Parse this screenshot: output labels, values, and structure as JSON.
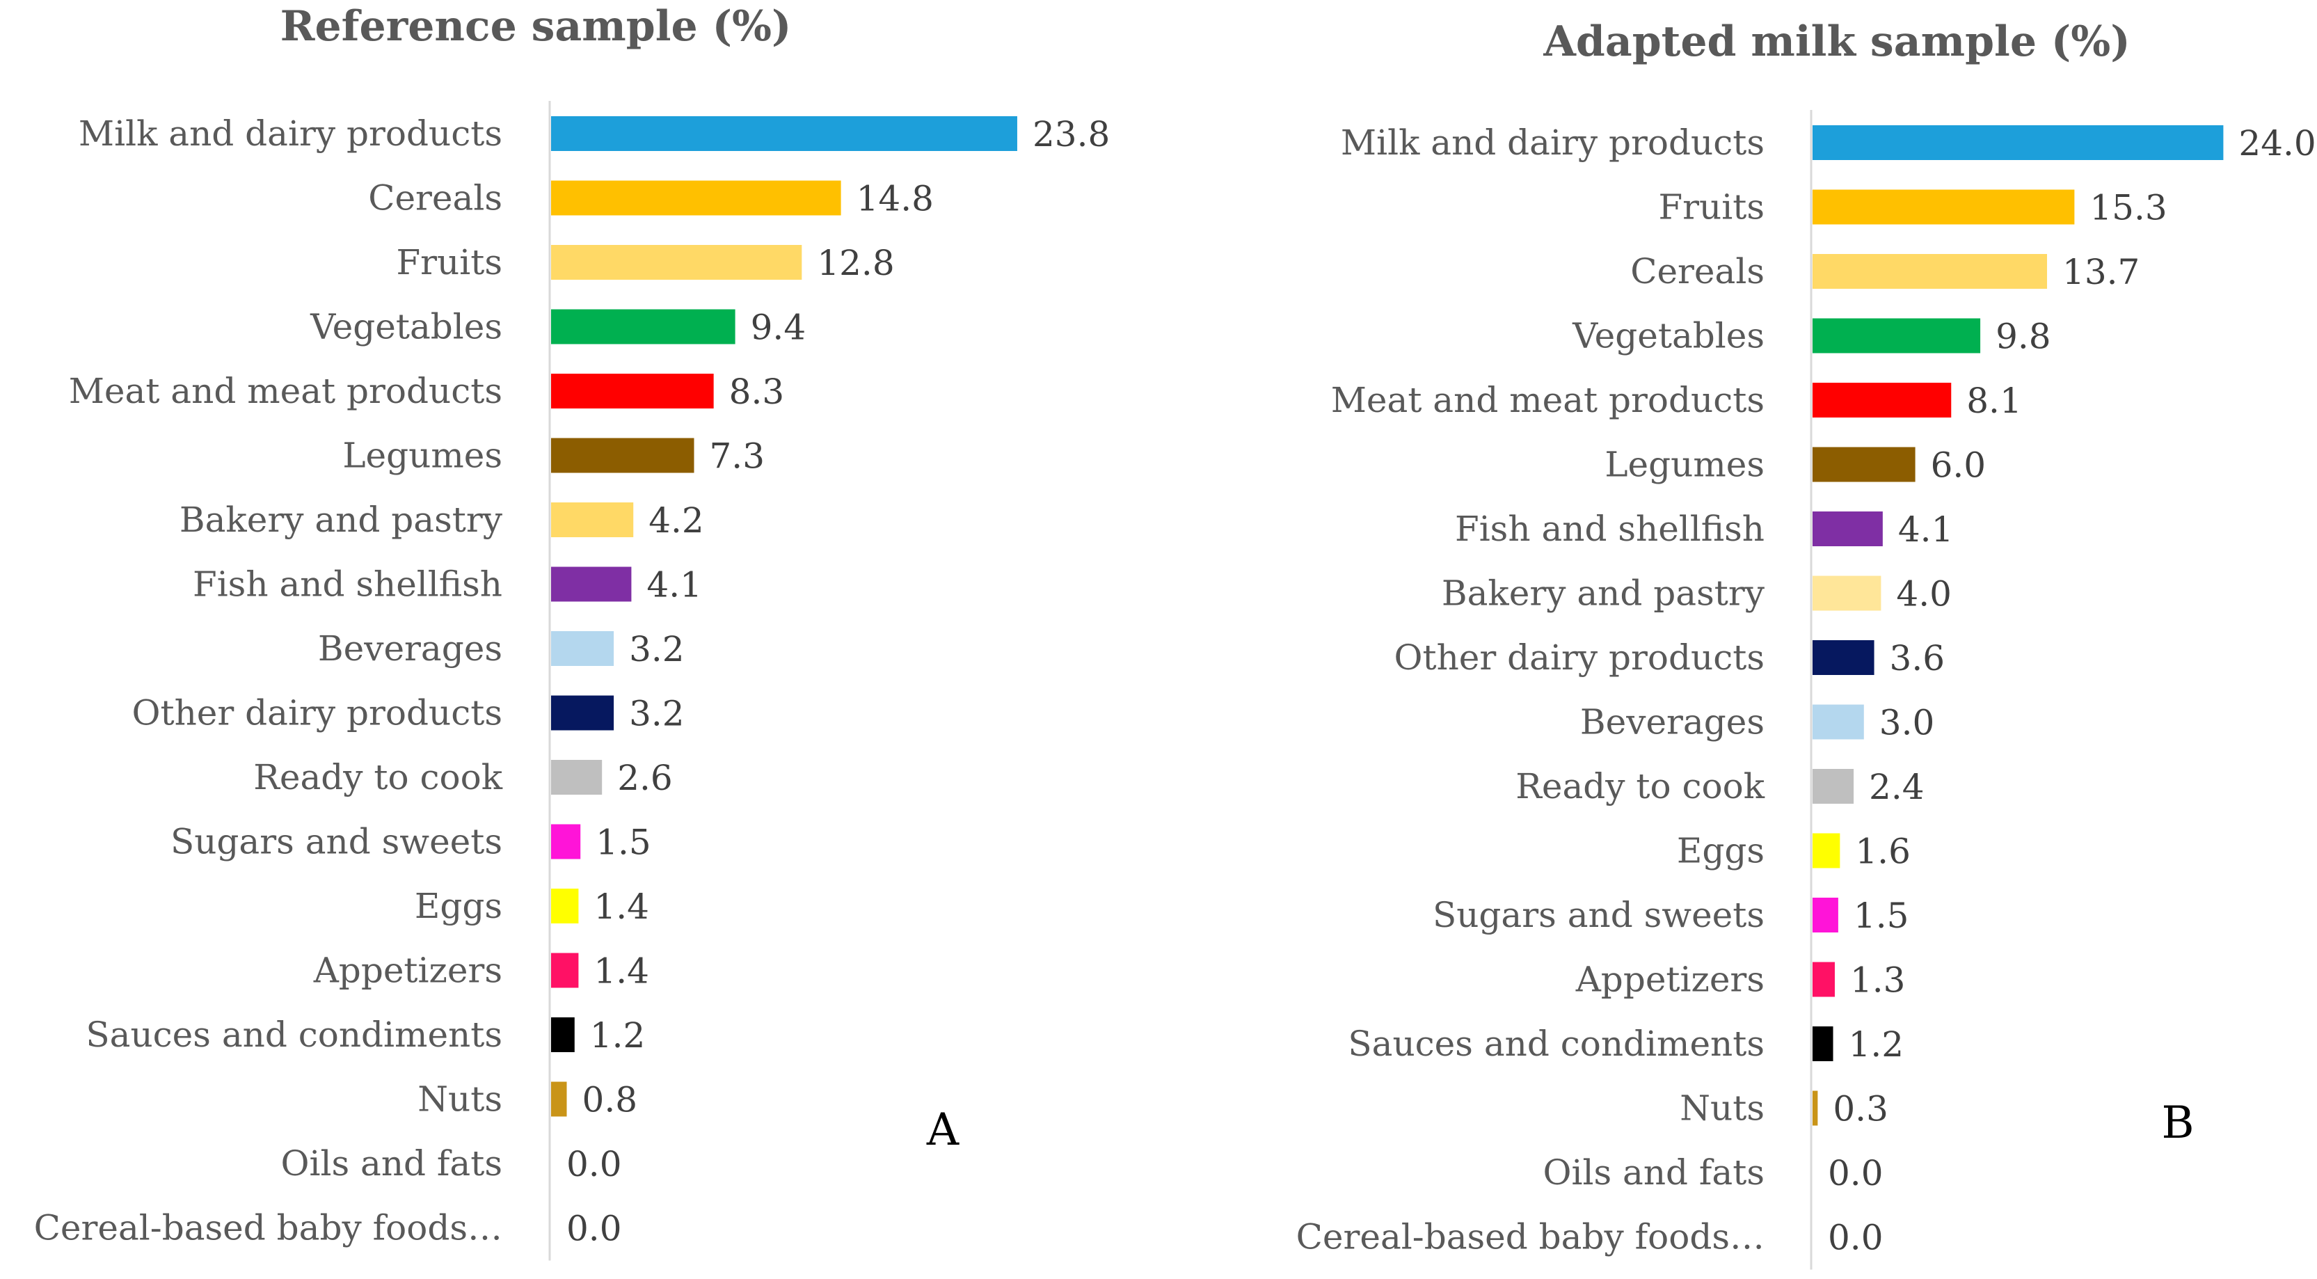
{
  "chart_data": [
    {
      "type": "bar",
      "orientation": "horizontal",
      "title": "Reference sample (%)",
      "panel_label": "A",
      "xlim": [
        0,
        25
      ],
      "grid": false,
      "categories": [
        "Milk and dairy products",
        "Cereals",
        "Fruits",
        "Vegetables",
        "Meat and meat products",
        "Legumes",
        "Bakery and pastry",
        "Fish and shellfish",
        "Beverages",
        "Other dairy products",
        "Ready to cook",
        "Sugars and sweets",
        "Eggs",
        "Appetizers",
        "Sauces and condiments",
        "Nuts",
        "Oils and fats",
        "Cereal-based baby foods…"
      ],
      "values": [
        23.8,
        14.8,
        12.8,
        9.4,
        8.3,
        7.3,
        4.2,
        4.1,
        3.2,
        3.2,
        2.6,
        1.5,
        1.4,
        1.4,
        1.2,
        0.8,
        0.0,
        0.0
      ],
      "value_labels": [
        "23.8",
        "14.8",
        "12.8",
        "9.4",
        "8.3",
        "7.3",
        "4.2",
        "4.1",
        "3.2",
        "3.2",
        "2.6",
        "1.5",
        "1.4",
        "1.4",
        "1.2",
        "0.8",
        "0.0",
        "0.0"
      ],
      "colors": [
        "#1d9fda",
        "#ffc000",
        "#ffd966",
        "#00b050",
        "#ff0000",
        "#8c5d00",
        "#ffd966",
        "#7f2fa4",
        "#b4d7ee",
        "#06185f",
        "#bfbfbf",
        "#ff14d8",
        "#ffff00",
        "#ff1165",
        "#000000",
        "#c99418",
        "#ffffff",
        "#ffffff"
      ]
    },
    {
      "type": "bar",
      "orientation": "horizontal",
      "title": "Adapted milk sample (%)",
      "panel_label": "B",
      "xlim": [
        0,
        25
      ],
      "grid": false,
      "categories": [
        "Milk and dairy products",
        "Fruits",
        "Cereals",
        "Vegetables",
        "Meat and meat products",
        "Legumes",
        "Fish and shellfish",
        "Bakery and pastry",
        "Other dairy products",
        "Beverages",
        "Ready to cook",
        "Eggs",
        "Sugars and sweets",
        "Appetizers",
        "Sauces and condiments",
        "Nuts",
        "Oils and fats",
        "Cereal-based baby foods…"
      ],
      "values": [
        24.0,
        15.3,
        13.7,
        9.8,
        8.1,
        6.0,
        4.1,
        4.0,
        3.6,
        3.0,
        2.4,
        1.6,
        1.5,
        1.3,
        1.2,
        0.3,
        0.0,
        0.0
      ],
      "value_labels": [
        "24.0",
        "15.3",
        "13.7",
        "9.8",
        "8.1",
        "6.0",
        "4.1",
        "4.0",
        "3.6",
        "3.0",
        "2.4",
        "1.6",
        "1.5",
        "1.3",
        "1.2",
        "0.3",
        "0.0",
        "0.0"
      ],
      "colors": [
        "#1d9fda",
        "#ffc000",
        "#ffd966",
        "#00b050",
        "#ff0000",
        "#8c5d00",
        "#7f2fa4",
        "#ffe699",
        "#06185f",
        "#b4d7ee",
        "#bfbfbf",
        "#ffff00",
        "#ff14d8",
        "#ff1165",
        "#000000",
        "#c99418",
        "#ffffff",
        "#ffffff"
      ]
    }
  ]
}
